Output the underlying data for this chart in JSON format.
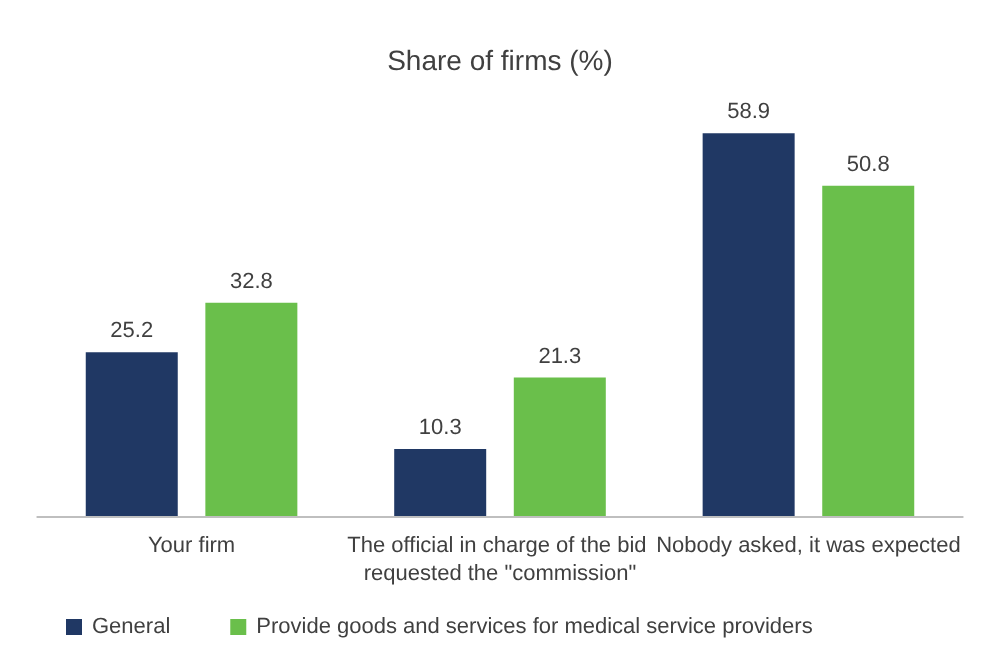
{
  "chart_data": {
    "type": "bar",
    "title": "Share of firms (%)",
    "categories": [
      "Your firm",
      "The official in charge of the bid requested the \"commission\"",
      "Nobody asked, it was expected"
    ],
    "series": [
      {
        "name": "General",
        "color": "#203864",
        "values": [
          25.2,
          10.3,
          58.9
        ]
      },
      {
        "name": "Provide goods and services for medical service providers",
        "color": "#6abf4b",
        "values": [
          32.8,
          21.3,
          50.8
        ]
      }
    ],
    "data_labels": true,
    "legend": "bottom"
  }
}
